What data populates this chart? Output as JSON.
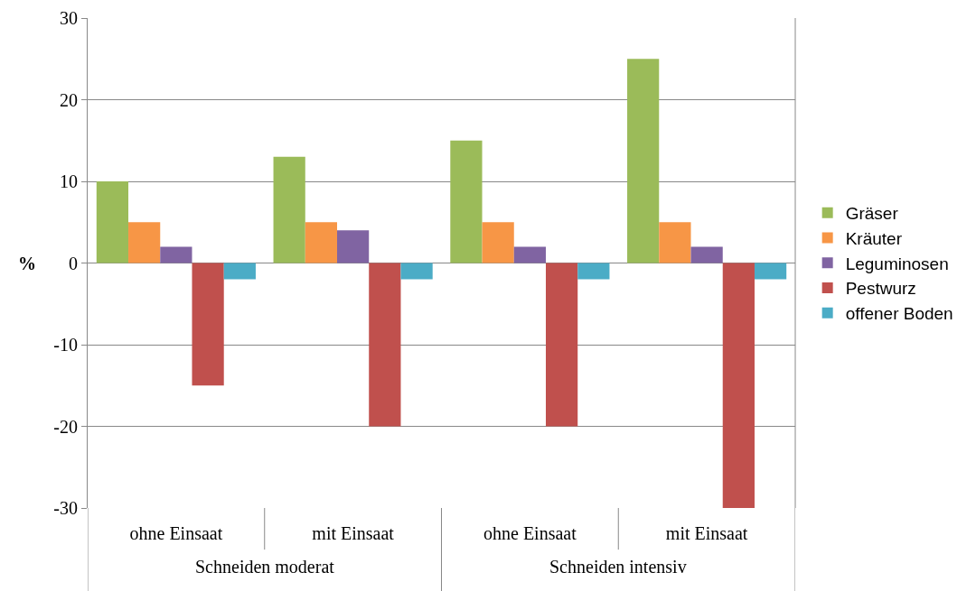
{
  "chart_data": {
    "type": "bar",
    "ylabel": "%",
    "categories": [
      "ohne Einsaat",
      "mit Einsaat",
      "ohne Einsaat",
      "mit Einsaat"
    ],
    "annotations": [
      "Schneiden moderat",
      "Schneiden intensiv"
    ],
    "series": [
      {
        "name": "Gräser",
        "color": "#9bbb59",
        "values": [
          10,
          13,
          15,
          25
        ]
      },
      {
        "name": "Kräuter",
        "color": "#f79646",
        "values": [
          5,
          5,
          5,
          5
        ]
      },
      {
        "name": "Leguminosen",
        "color": "#8064a2",
        "values": [
          2,
          4,
          2,
          2
        ]
      },
      {
        "name": "Pestwurz",
        "color": "#c0504d",
        "values": [
          -15,
          -20,
          -20,
          -30
        ]
      },
      {
        "name": "offener Boden",
        "color": "#4bacc6",
        "values": [
          -2,
          -2,
          -2,
          -2
        ]
      }
    ],
    "ylim": [
      -30,
      30
    ],
    "yticks": [
      -30,
      -20,
      -10,
      0,
      10,
      20,
      30
    ],
    "grid": "y",
    "legend": "right"
  }
}
